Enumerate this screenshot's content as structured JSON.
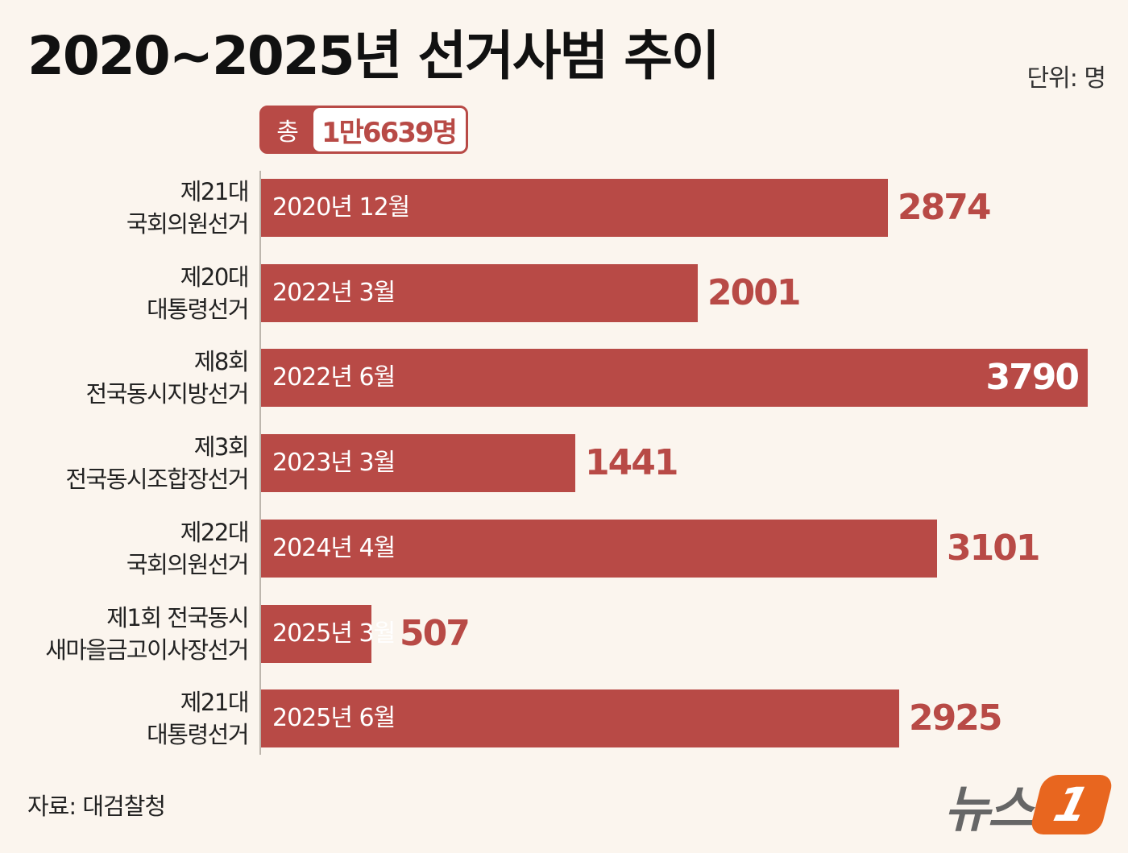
{
  "title": "2020~2025년 선거사범 추이",
  "unit": "단위: 명",
  "total": {
    "label": "총",
    "value": "1만6639명"
  },
  "source": "자료: 대검찰청",
  "logo": {
    "text": "뉴스",
    "mark": "1"
  },
  "colors": {
    "bar": "#b84a46",
    "background": "#fbf5ee",
    "logo": "#e8661f"
  },
  "chart_data": {
    "type": "bar",
    "orientation": "horizontal",
    "categories": [
      "제21대\n국회의원선거",
      "제20대\n대통령선거",
      "제8회\n전국동시지방선거",
      "제3회\n전국동시조합장선거",
      "제22대\n국회의원선거",
      "제1회 전국동시\n새마을금고이사장선거",
      "제21대\n대통령선거"
    ],
    "dates": [
      "2020년 12월",
      "2022년 3월",
      "2022년 6월",
      "2023년 3월",
      "2024년 4월",
      "2025년 3월",
      "2025년 6월"
    ],
    "values": [
      2874,
      2001,
      3790,
      1441,
      3101,
      507,
      2925
    ],
    "title": "2020~2025년 선거사범 추이",
    "xlim": [
      0,
      3790
    ],
    "grid": false
  }
}
